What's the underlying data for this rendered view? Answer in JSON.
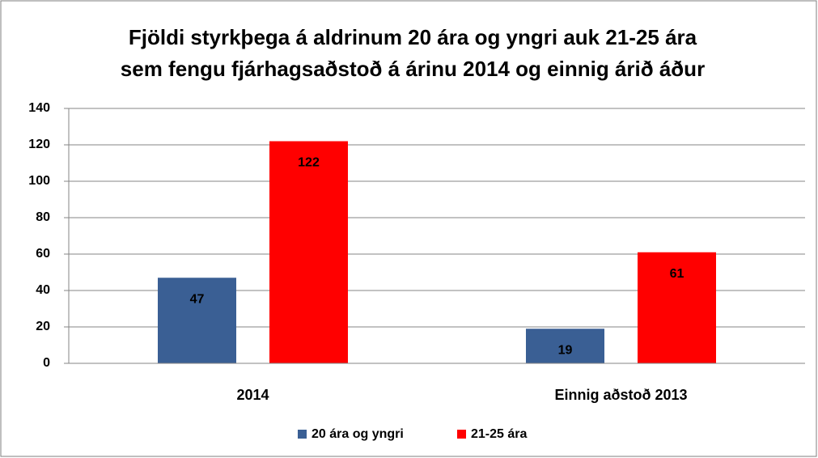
{
  "chart_data": {
    "type": "bar",
    "title": [
      "Fjöldi styrkþega á aldrinum 20 ára og yngri auk 21-25  ára",
      "sem fengu fjárhagsaðstoð á árinu 2014 og einnig árið áður"
    ],
    "categories": [
      "2014",
      "Einnig aðstoð 2013"
    ],
    "series": [
      {
        "name": "20 ára og yngri",
        "color": "#3a5f94",
        "values": [
          47,
          19
        ]
      },
      {
        "name": "21-25 ára",
        "color": "#ff0000",
        "values": [
          122,
          61
        ]
      }
    ],
    "ylim": [
      0,
      140
    ],
    "yticks": [
      0,
      20,
      40,
      60,
      80,
      100,
      120,
      140
    ],
    "grid": true,
    "legend": "bottom"
  }
}
